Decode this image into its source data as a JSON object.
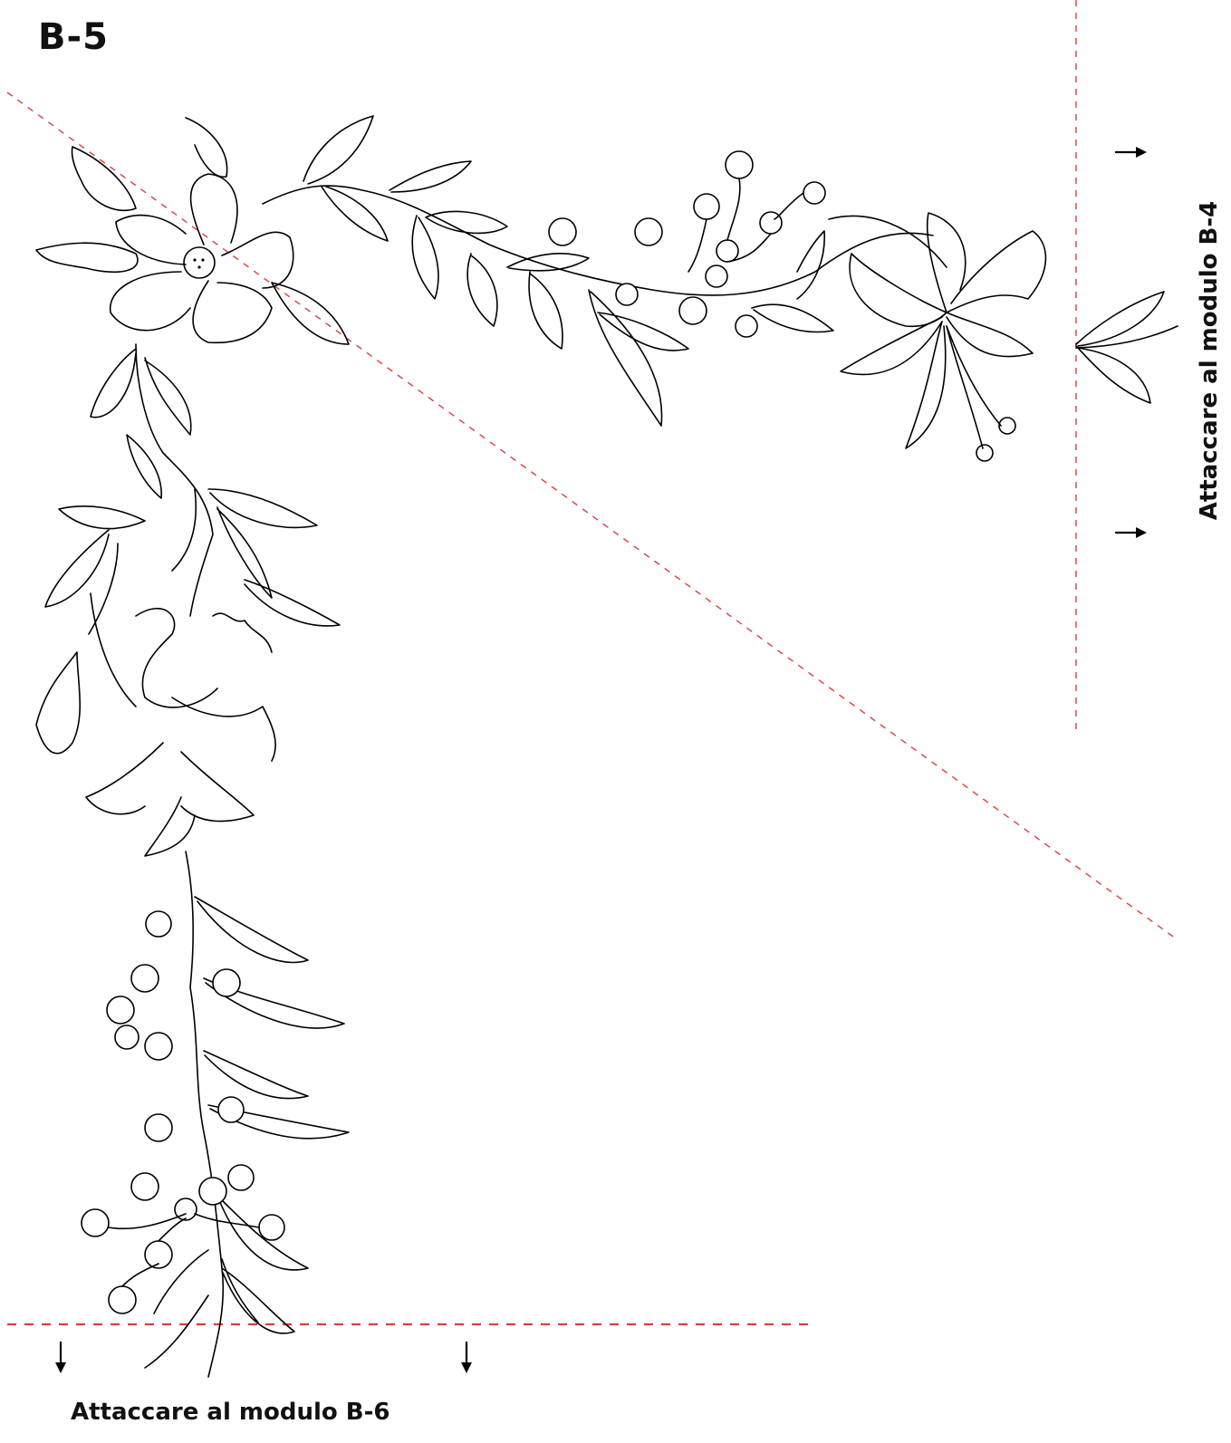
{
  "module": {
    "id": "B-5"
  },
  "join_labels": {
    "bottom": "Attaccare al modulo B-6",
    "right": "Attaccare al modulo B-4"
  },
  "colors": {
    "ink": "#000000",
    "cut_line": "#e23b3b",
    "background": "#ffffff"
  },
  "icons": {
    "arrow_down": "arrow-down-icon",
    "arrow_right": "arrow-right-icon"
  }
}
